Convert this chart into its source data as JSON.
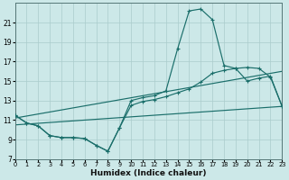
{
  "xlabel": "Humidex (Indice chaleur)",
  "background_color": "#cce8e8",
  "line_color": "#1a6e6a",
  "grid_color": "#aacccc",
  "xlim": [
    0,
    23
  ],
  "ylim": [
    7,
    23
  ],
  "xticks": [
    0,
    1,
    2,
    3,
    4,
    5,
    6,
    7,
    8,
    9,
    10,
    11,
    12,
    13,
    14,
    15,
    16,
    17,
    18,
    19,
    20,
    21,
    22,
    23
  ],
  "yticks": [
    7,
    9,
    11,
    13,
    15,
    17,
    19,
    21
  ],
  "curve1_x": [
    0,
    1,
    2,
    3,
    4,
    5,
    6,
    7,
    8,
    9,
    10,
    11,
    12,
    13,
    14,
    15,
    16,
    17,
    18,
    19,
    20,
    21,
    22,
    23
  ],
  "curve1_y": [
    11.5,
    10.7,
    10.4,
    9.4,
    9.2,
    9.2,
    9.1,
    8.4,
    7.8,
    10.2,
    13.0,
    13.3,
    13.5,
    14.0,
    18.3,
    22.2,
    22.4,
    21.3,
    16.6,
    16.3,
    15.0,
    15.3,
    15.5,
    12.4
  ],
  "curve2_x": [
    0,
    1,
    2,
    3,
    4,
    5,
    6,
    7,
    8,
    9,
    10,
    11,
    12,
    13,
    14,
    15,
    16,
    17,
    18,
    19,
    20,
    21,
    22,
    23
  ],
  "curve2_y": [
    11.5,
    10.7,
    10.4,
    9.4,
    9.2,
    9.2,
    9.1,
    8.4,
    7.8,
    10.2,
    12.5,
    12.9,
    13.1,
    13.4,
    13.8,
    14.2,
    14.9,
    15.8,
    16.1,
    16.3,
    16.4,
    16.3,
    15.4,
    12.4
  ],
  "trend1_x": [
    0,
    23
  ],
  "trend1_y": [
    11.2,
    16.0
  ],
  "trend2_x": [
    0,
    23
  ],
  "trend2_y": [
    10.5,
    12.4
  ]
}
